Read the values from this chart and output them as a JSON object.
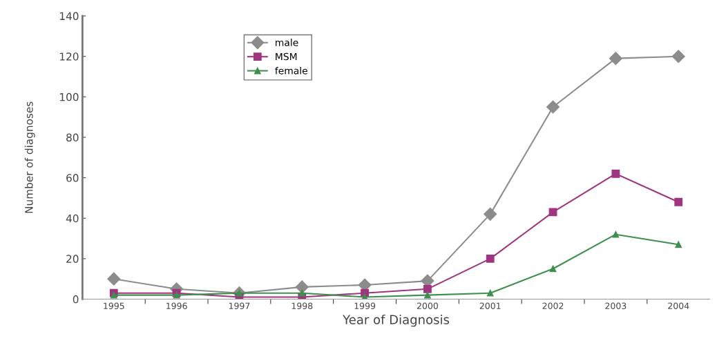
{
  "chart_data": {
    "type": "line",
    "xlabel": "Year of Diagnosis",
    "ylabel": "Number of diagnoses",
    "categories": [
      "1995",
      "1996",
      "1997",
      "1998",
      "1999",
      "2000",
      "2001",
      "2002",
      "2003",
      "2004"
    ],
    "series": [
      {
        "name": "male",
        "color": "#8c8c8c",
        "marker": "diamond",
        "values": [
          10,
          5,
          3,
          6,
          7,
          9,
          42,
          95,
          119,
          120
        ]
      },
      {
        "name": "MSM",
        "color": "#a0357f",
        "marker": "square",
        "values": [
          3,
          3,
          1,
          1,
          3,
          5,
          20,
          43,
          62,
          48
        ]
      },
      {
        "name": "female",
        "color": "#3f8f4f",
        "marker": "triangle",
        "values": [
          2,
          2,
          3,
          3,
          1,
          2,
          3,
          15,
          32,
          27
        ]
      }
    ],
    "ylim": [
      0,
      140
    ],
    "yticks": [
      0,
      20,
      40,
      60,
      80,
      100,
      120,
      140
    ],
    "grid": false,
    "legend": "top left",
    "line_style": "solid"
  }
}
